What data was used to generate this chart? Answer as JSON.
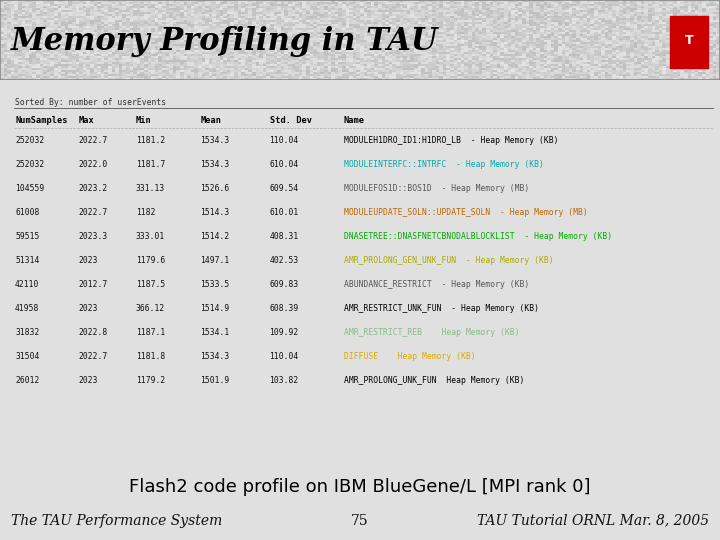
{
  "title": "Memory Profiling in TAU",
  "title_color": "#000000",
  "title_fontsize": 22,
  "sorted_by_text": "Sorted By: number of userEvents",
  "col_headers": [
    "NumSamples",
    "Max",
    "Min",
    "Mean",
    "Std. Dev",
    "Name"
  ],
  "table_data": [
    [
      "252032",
      "2022.7",
      "1181.2",
      "1534.3",
      "110.04",
      "MODULEH1DRO_ID1:H1DRO_LB  - Heap Memory (KB)"
    ],
    [
      "252032",
      "2022.0",
      "1181.7",
      "1534.3",
      "610.04",
      "MODULEINTERFC::INTRFC  - Heap Memory (KB)"
    ],
    [
      "104559",
      "2023.2",
      "331.13",
      "1526.6",
      "609.54",
      "MODULEFOS1D::BOS1D  - Heap Memory (MB)"
    ],
    [
      "61008",
      "2022.7",
      "1182",
      "1514.3",
      "610.01",
      "MODULEUPDATE_SOLN::UPDATE_SOLN  - Heap Memory (MB)"
    ],
    [
      "59515",
      "2023.3",
      "333.01",
      "1514.2",
      "408.31",
      "DNASETREE::DNASFNETCBNODALBLOCKLIST  - Heap Memory (KB)"
    ],
    [
      "51314",
      "2023",
      "1179.6",
      "1497.1",
      "402.53",
      "AMR_PROLONG_GEN_UNK_FUN  - Heap Memory (KB)"
    ],
    [
      "42110",
      "2012.7",
      "1187.5",
      "1533.5",
      "609.83",
      "ABUNDANCE_RESTRICT  - Heap Memory (KB)"
    ],
    [
      "41958",
      "2023",
      "366.12",
      "1514.9",
      "608.39",
      "AMR_RESTRICT_UNK_FUN  - Heap Memory (KB)"
    ],
    [
      "31832",
      "2022.8",
      "1187.1",
      "1534.1",
      "109.92",
      "AMR_RESTRICT_REB    Heap Memory (KB)"
    ],
    [
      "31504",
      "2022.7",
      "1181.8",
      "1534.3",
      "110.04",
      "DIFFUSE    Heap Memory (KB)"
    ],
    [
      "26012",
      "2023",
      "1179.2",
      "1501.9",
      "103.82",
      "AMR_PROLONG_UNK_FUN  Heap Memory (KB)"
    ]
  ],
  "row_colors": [
    "#000000",
    "#00aaaa",
    "#555555",
    "#bb6600",
    "#00aa00",
    "#aaaa00",
    "#555555",
    "#000000",
    "#88bb88",
    "#ddaa00",
    "#000000"
  ],
  "caption": "Flash2 code profile on IBM BlueGene/L [MPI rank 0]",
  "caption_fontsize": 13,
  "footer_left": "The TAU Performance System",
  "footer_center": "75",
  "footer_right": "TAU Tutorial ORNL Mar. 8, 2005",
  "footer_fontsize": 10,
  "slide_bg": "#e0e0e0",
  "title_bar_bg": "#c8c8c8"
}
